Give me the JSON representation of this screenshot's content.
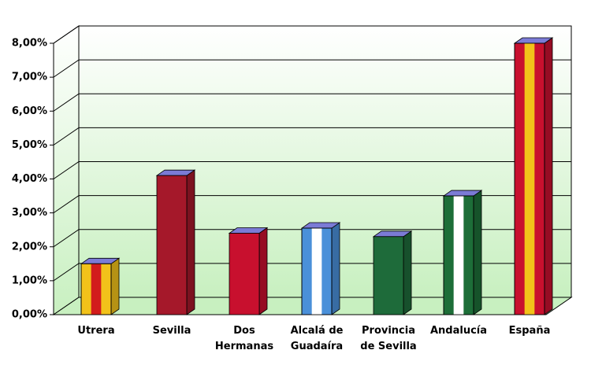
{
  "chart_data": {
    "type": "bar3d",
    "categories": [
      "Utrera",
      "Sevilla",
      "Dos\nHermanas",
      "Alcalá de\nGuadaíra",
      "Provincia\nde Sevilla",
      "Andalucía",
      "España"
    ],
    "values": [
      1.5,
      4.1,
      2.4,
      2.55,
      2.3,
      3.5,
      8.0
    ],
    "colors": [
      "#f2c21a",
      "#a5182a",
      "#c8102e",
      "#4a90d9",
      "#1e6b3a",
      "#1d6e38",
      "#c8102e"
    ],
    "stripe_colors": [
      "#d21c1c",
      null,
      null,
      "#ffffff",
      null,
      "#ffffff",
      "#f2c21a"
    ],
    "top_color": "#7b7bd6",
    "ylim": [
      0,
      8
    ],
    "yticks": [
      {
        "value": 0,
        "label": "0,00%"
      },
      {
        "value": 1,
        "label": "1,00%"
      },
      {
        "value": 2,
        "label": "2,00%"
      },
      {
        "value": 3,
        "label": "3,00%"
      },
      {
        "value": 4,
        "label": "4,00%"
      },
      {
        "value": 5,
        "label": "5,00%"
      },
      {
        "value": 6,
        "label": "6,00%"
      },
      {
        "value": 7,
        "label": "7,00%"
      },
      {
        "value": 8,
        "label": "8,00%"
      }
    ],
    "grid": true
  }
}
